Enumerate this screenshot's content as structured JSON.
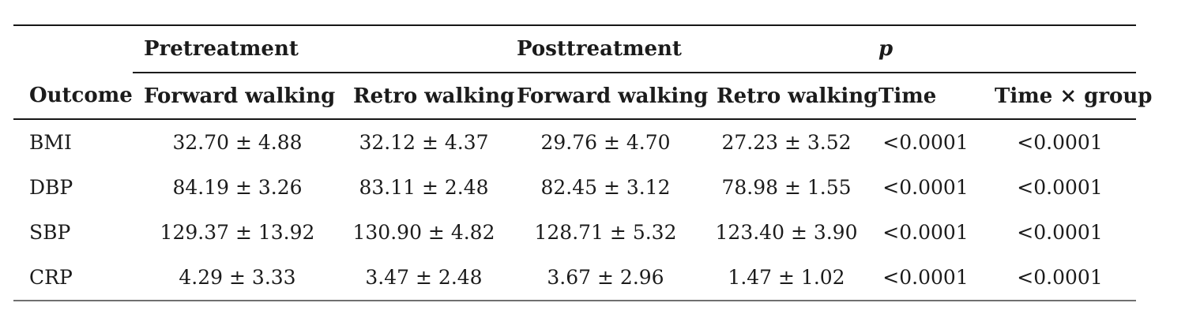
{
  "table": {
    "group_headers": {
      "pretreatment": "Pretreatment",
      "posttreatment": "Posttreatment",
      "p": "p"
    },
    "columns": {
      "outcome": "Outcome",
      "pre_forward": "Forward walking",
      "pre_retro": "Retro walking",
      "post_forward": "Forward walking",
      "post_retro": "Retro walking",
      "time": "Time",
      "time_group": "Time × group"
    },
    "rows": [
      {
        "outcome": "BMI",
        "values": [
          "32.70 ± 4.88",
          "32.12 ± 4.37",
          "29.76 ± 4.70",
          "27.23 ± 3.52",
          "<0.0001",
          "<0.0001"
        ]
      },
      {
        "outcome": "DBP",
        "values": [
          "84.19 ± 3.26",
          "83.11 ± 2.48",
          "82.45 ± 3.12",
          "78.98 ± 1.55",
          "<0.0001",
          "<0.0001"
        ]
      },
      {
        "outcome": "SBP",
        "values": [
          "129.37 ± 13.92",
          "130.90 ± 4.82",
          "128.71 ± 5.32",
          "123.40 ± 3.90",
          "<0.0001",
          "<0.0001"
        ]
      },
      {
        "outcome": "CRP",
        "values": [
          "4.29 ± 3.33",
          "3.47 ± 2.48",
          "3.67 ± 2.96",
          "1.47 ± 1.02",
          "<0.0001",
          "<0.0001"
        ]
      }
    ],
    "colors": {
      "text": "#1b1b1b",
      "rule_dark": "#161616",
      "rule_bottom": "#707070",
      "background": "#ffffff"
    }
  }
}
